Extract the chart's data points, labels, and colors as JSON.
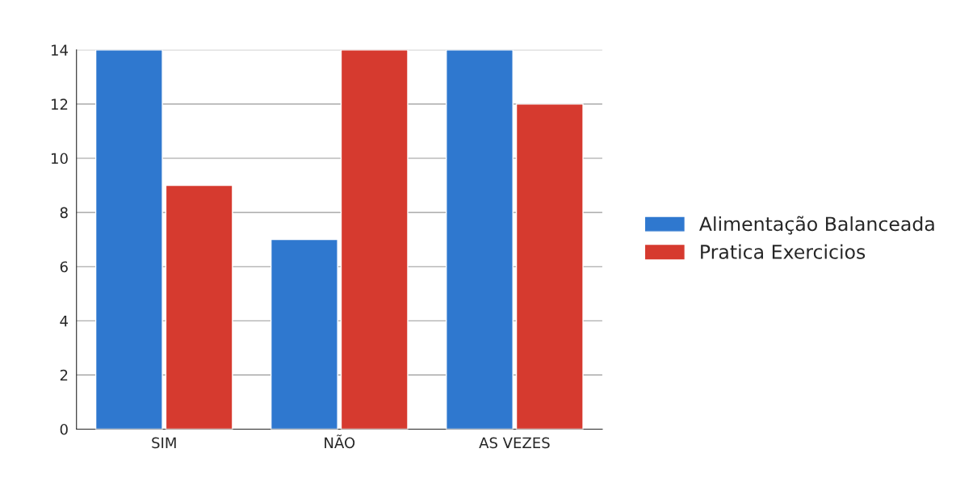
{
  "chart_data": {
    "type": "bar",
    "categories": [
      "SIM",
      "NÃO",
      "AS VEZES"
    ],
    "series": [
      {
        "name": "Alimentação Balanceada",
        "color": "#2f78cf",
        "values": [
          14,
          7,
          14
        ]
      },
      {
        "name": "Pratica Exercicios",
        "color": "#d63a2f",
        "values": [
          9,
          14,
          12
        ]
      }
    ],
    "ylim": [
      0,
      14
    ],
    "yticks": [
      0,
      2,
      4,
      6,
      8,
      10,
      12,
      14
    ],
    "grid": "y",
    "legend": "right"
  }
}
